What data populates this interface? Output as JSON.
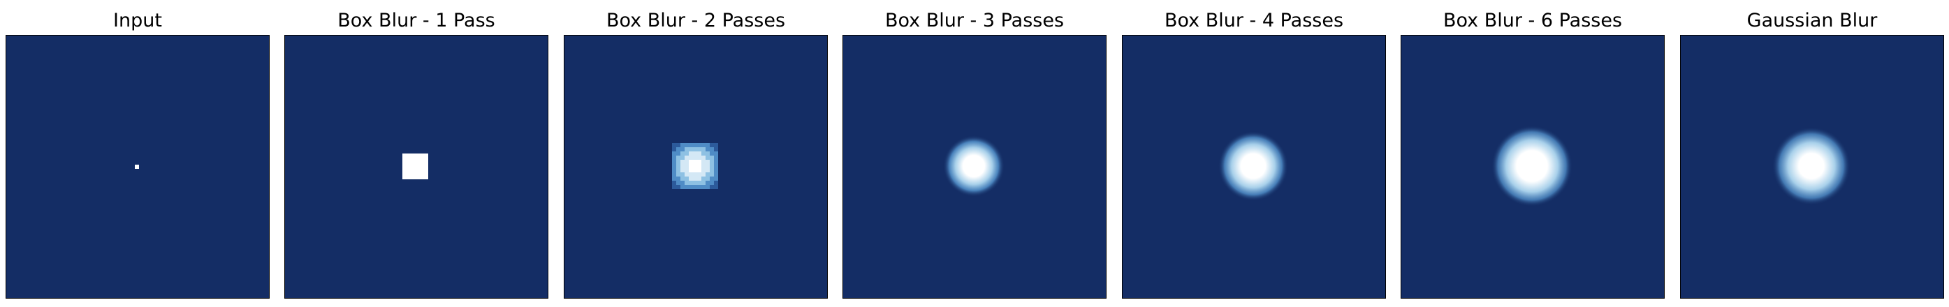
{
  "colors": {
    "background": "#142d65",
    "highlight": "#ffffff",
    "mid": "#4a86c2"
  },
  "panels": [
    {
      "title": "Input",
      "kind": "point"
    },
    {
      "title": "Box Blur - 1 Pass",
      "kind": "square"
    },
    {
      "title": "Box Blur - 2 Passes",
      "kind": "pixelated-blob"
    },
    {
      "title": "Box Blur - 3 Passes",
      "kind": "soft-blob"
    },
    {
      "title": "Box Blur - 4 Passes",
      "kind": "soft-blob"
    },
    {
      "title": "Box Blur - 6 Passes",
      "kind": "soft-blob"
    },
    {
      "title": "Gaussian Blur",
      "kind": "soft-blob"
    }
  ]
}
